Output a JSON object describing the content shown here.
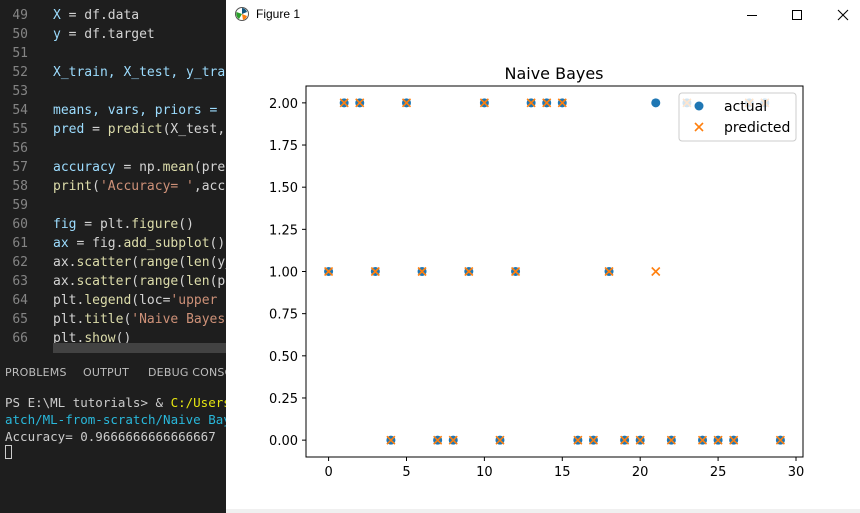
{
  "editor": {
    "lines": [
      {
        "num": "49",
        "tokens": [
          {
            "t": "X",
            "c": "var"
          },
          {
            "t": " = df.data",
            "c": "plain"
          }
        ]
      },
      {
        "num": "50",
        "tokens": [
          {
            "t": "y",
            "c": "var"
          },
          {
            "t": " = df.target",
            "c": "plain"
          }
        ]
      },
      {
        "num": "51",
        "tokens": []
      },
      {
        "num": "52",
        "tokens": [
          {
            "t": "X_train, X_test, y_trai",
            "c": "var"
          }
        ]
      },
      {
        "num": "53",
        "tokens": []
      },
      {
        "num": "54",
        "tokens": [
          {
            "t": "means, vars, priors = ",
            "c": "var"
          }
        ]
      },
      {
        "num": "55",
        "tokens": [
          {
            "t": "pred",
            "c": "var"
          },
          {
            "t": " = ",
            "c": "plain"
          },
          {
            "t": "predict",
            "c": "fn"
          },
          {
            "t": "(X_test,",
            "c": "plain"
          }
        ]
      },
      {
        "num": "56",
        "tokens": []
      },
      {
        "num": "57",
        "tokens": [
          {
            "t": "accuracy",
            "c": "var"
          },
          {
            "t": " = np.",
            "c": "plain"
          },
          {
            "t": "mean",
            "c": "fn"
          },
          {
            "t": "(pred",
            "c": "plain"
          }
        ]
      },
      {
        "num": "58",
        "tokens": [
          {
            "t": "print",
            "c": "fn"
          },
          {
            "t": "(",
            "c": "plain"
          },
          {
            "t": "'Accuracy= '",
            "c": "str"
          },
          {
            "t": ",accu",
            "c": "plain"
          }
        ]
      },
      {
        "num": "59",
        "tokens": []
      },
      {
        "num": "60",
        "tokens": [
          {
            "t": "fig",
            "c": "var"
          },
          {
            "t": " = plt.",
            "c": "plain"
          },
          {
            "t": "figure",
            "c": "fn"
          },
          {
            "t": "()",
            "c": "plain"
          }
        ]
      },
      {
        "num": "61",
        "tokens": [
          {
            "t": "ax",
            "c": "var"
          },
          {
            "t": " = fig.",
            "c": "plain"
          },
          {
            "t": "add_subplot",
            "c": "fn"
          },
          {
            "t": "()",
            "c": "plain"
          }
        ]
      },
      {
        "num": "62",
        "tokens": [
          {
            "t": "ax.",
            "c": "plain"
          },
          {
            "t": "scatter",
            "c": "fn"
          },
          {
            "t": "(",
            "c": "plain"
          },
          {
            "t": "range",
            "c": "fn"
          },
          {
            "t": "(",
            "c": "plain"
          },
          {
            "t": "len",
            "c": "fn"
          },
          {
            "t": "(y_",
            "c": "plain"
          }
        ]
      },
      {
        "num": "63",
        "tokens": [
          {
            "t": "ax.",
            "c": "plain"
          },
          {
            "t": "scatter",
            "c": "fn"
          },
          {
            "t": "(",
            "c": "plain"
          },
          {
            "t": "range",
            "c": "fn"
          },
          {
            "t": "(",
            "c": "plain"
          },
          {
            "t": "len",
            "c": "fn"
          },
          {
            "t": "(pr",
            "c": "plain"
          }
        ]
      },
      {
        "num": "64",
        "tokens": [
          {
            "t": "plt.",
            "c": "plain"
          },
          {
            "t": "legend",
            "c": "fn"
          },
          {
            "t": "(loc=",
            "c": "plain"
          },
          {
            "t": "'upper r",
            "c": "str"
          }
        ]
      },
      {
        "num": "65",
        "tokens": [
          {
            "t": "plt.",
            "c": "plain"
          },
          {
            "t": "title",
            "c": "fn"
          },
          {
            "t": "(",
            "c": "plain"
          },
          {
            "t": "'Naive Bayes",
            "c": "str"
          }
        ]
      },
      {
        "num": "66",
        "tokens": [
          {
            "t": "plt.",
            "c": "plain"
          },
          {
            "t": "show",
            "c": "fn"
          },
          {
            "t": "()",
            "c": "plain"
          }
        ]
      }
    ]
  },
  "panel": {
    "tabs": [
      "PROBLEMS",
      "OUTPUT",
      "DEBUG CONSOL"
    ],
    "terminal": {
      "prompt": "PS E:\\ML tutorials> & ",
      "command": "C:/Users/F",
      "path_line": "atch/ML-from-scratch/Naive Bayes",
      "output": "Accuracy=  0.9666666666666667"
    }
  },
  "figure_window": {
    "title": "Figure 1",
    "buttons": {
      "minimize": "minimize",
      "maximize": "maximize",
      "close": "close"
    }
  },
  "colors": {
    "actual": "#1f77b4",
    "predicted": "#ff7f0e"
  },
  "chart_data": {
    "type": "scatter",
    "title": "Naive Bayes",
    "xlabel": "",
    "ylabel": "",
    "xlim": [
      -1.45,
      30.45
    ],
    "ylim": [
      -0.1,
      2.1
    ],
    "xticks": [
      0,
      5,
      10,
      15,
      20,
      25,
      30
    ],
    "yticks": [
      "0.00",
      "0.25",
      "0.50",
      "0.75",
      "1.00",
      "1.25",
      "1.50",
      "1.75",
      "2.00"
    ],
    "legend": {
      "placement": "upper right",
      "entries": [
        "actual",
        "predicted"
      ]
    },
    "grid": false,
    "series": [
      {
        "name": "actual",
        "marker": "circle",
        "x": [
          0,
          1,
          2,
          3,
          4,
          5,
          6,
          7,
          8,
          9,
          10,
          11,
          12,
          13,
          14,
          15,
          16,
          17,
          18,
          19,
          20,
          21,
          22,
          23,
          24,
          25,
          26,
          27,
          28,
          29
        ],
        "y": [
          1,
          2,
          2,
          1,
          0,
          2,
          1,
          0,
          0,
          1,
          2,
          0,
          1,
          2,
          2,
          2,
          0,
          0,
          1,
          0,
          0,
          2,
          0,
          2,
          0,
          0,
          0,
          2,
          2,
          0
        ]
      },
      {
        "name": "predicted",
        "marker": "x",
        "x": [
          0,
          1,
          2,
          3,
          4,
          5,
          6,
          7,
          8,
          9,
          10,
          11,
          12,
          13,
          14,
          15,
          16,
          17,
          18,
          19,
          20,
          21,
          22,
          23,
          24,
          25,
          26,
          27,
          28,
          29
        ],
        "y": [
          1,
          2,
          2,
          1,
          0,
          2,
          1,
          0,
          0,
          1,
          2,
          0,
          1,
          2,
          2,
          2,
          0,
          0,
          1,
          0,
          0,
          1,
          0,
          2,
          0,
          0,
          0,
          2,
          2,
          0
        ]
      }
    ]
  }
}
